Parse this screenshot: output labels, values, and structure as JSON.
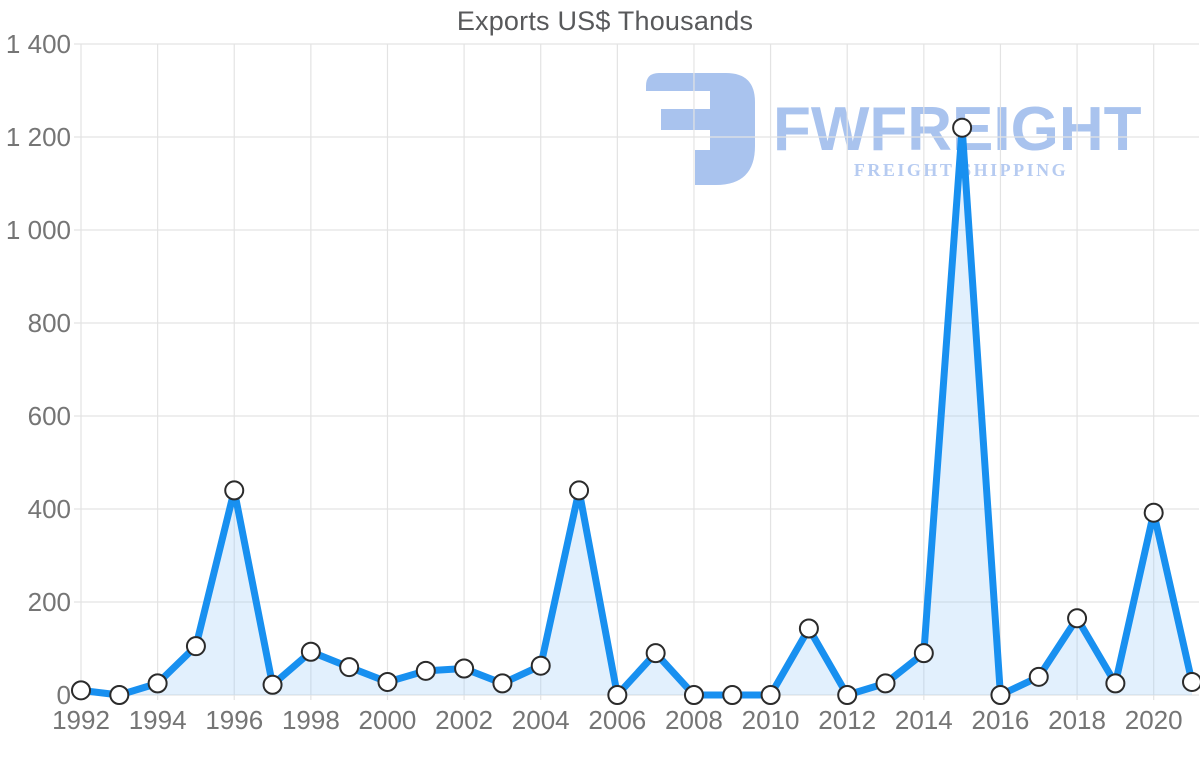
{
  "page": {
    "background": "#ffffff"
  },
  "chart_data": {
    "type": "area",
    "title": "Exports US$ Thousands",
    "x": [
      1992,
      1993,
      1994,
      1995,
      1996,
      1997,
      1998,
      1999,
      2000,
      2001,
      2002,
      2003,
      2004,
      2005,
      2006,
      2007,
      2008,
      2009,
      2010,
      2011,
      2012,
      2013,
      2014,
      2015,
      2016,
      2017,
      2018,
      2019,
      2020,
      2021
    ],
    "values": [
      10,
      0,
      25,
      105,
      440,
      22,
      93,
      60,
      28,
      52,
      57,
      25,
      63,
      440,
      0,
      90,
      0,
      0,
      0,
      143,
      0,
      25,
      90,
      1220,
      0,
      39,
      165,
      25,
      392,
      28
    ],
    "xlabel": "",
    "ylabel": "",
    "ylim": [
      0,
      1400
    ],
    "ytick_interval": 200,
    "ytick_labels": [
      "0",
      "200",
      "400",
      "600",
      "800",
      "1 000",
      "1 200",
      "1 400"
    ],
    "xtick_labels": [
      "1992",
      "1994",
      "1996",
      "1998",
      "2000",
      "2002",
      "2004",
      "2006",
      "2008",
      "2010",
      "2012",
      "2014",
      "2016",
      "2018",
      "2020"
    ],
    "grid": true,
    "legend_position": "none",
    "colors": {
      "line": "#1890f0",
      "fill": "rgba(151,202,247,0.28)",
      "marker_fill": "#ffffff",
      "marker_stroke": "#2b2b2b",
      "grid": "#e3e3e3",
      "axis_label": "#757575",
      "title": "#58595b"
    }
  },
  "watermark": {
    "brand": "FWFREIGHT",
    "subtitle": "FREIGHT SHIPPING",
    "colors": {
      "logo": "#a9c3ee",
      "brand": "#a9c3ee",
      "subtitle": "#b6cbf1"
    }
  }
}
